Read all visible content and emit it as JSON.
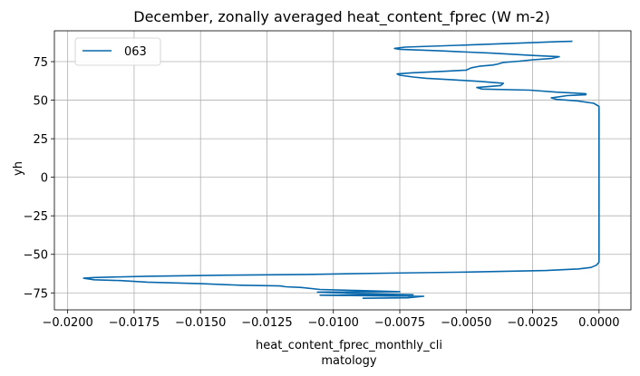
{
  "chart_data": {
    "type": "line",
    "title": "December, zonally averaged heat_content_fprec (W m-2)",
    "xlabel": [
      "heat_content_fprec_monthly_cli",
      "matology"
    ],
    "ylabel": "yh",
    "xlim": [
      -0.0205,
      0.0012
    ],
    "ylim": [
      -86,
      95
    ],
    "xticks": [
      -0.02,
      -0.0175,
      -0.015,
      -0.0125,
      -0.01,
      -0.0075,
      -0.005,
      -0.0025,
      0.0
    ],
    "xtick_labels": [
      "−0.0200",
      "−0.0175",
      "−0.0150",
      "−0.0125",
      "−0.0100",
      "−0.0075",
      "−0.0050",
      "−0.0025",
      "0.0000"
    ],
    "yticks": [
      -75,
      -50,
      -25,
      0,
      25,
      50,
      75
    ],
    "ytick_labels": [
      "−75",
      "−50",
      "−25",
      "0",
      "25",
      "50",
      "75"
    ],
    "grid": true,
    "legend_position": "upper-left",
    "series": [
      {
        "name": "063",
        "color": "#0868ac",
        "points": [
          [
            -0.0089,
            -78.5
          ],
          [
            -0.0072,
            -78.2
          ],
          [
            -0.0066,
            -77.2
          ],
          [
            -0.0079,
            -77.0
          ],
          [
            -0.0105,
            -76.5
          ],
          [
            -0.007,
            -76.2
          ],
          [
            -0.009,
            -75.5
          ],
          [
            -0.0106,
            -74.5
          ],
          [
            -0.0075,
            -74.2
          ],
          [
            -0.009,
            -73.5
          ],
          [
            -0.0105,
            -72.8
          ],
          [
            -0.0112,
            -71.5
          ],
          [
            -0.0118,
            -71.0
          ],
          [
            -0.012,
            -70.5
          ],
          [
            -0.0135,
            -70.0
          ],
          [
            -0.015,
            -69.0
          ],
          [
            -0.017,
            -68.0
          ],
          [
            -0.018,
            -67.0
          ],
          [
            -0.019,
            -66.5
          ],
          [
            -0.0194,
            -65.5
          ],
          [
            -0.019,
            -65.0
          ],
          [
            -0.017,
            -64.2
          ],
          [
            -0.014,
            -63.5
          ],
          [
            -0.011,
            -63.0
          ],
          [
            -0.008,
            -62.2
          ],
          [
            -0.005,
            -61.5
          ],
          [
            -0.002,
            -60.5
          ],
          [
            -0.0008,
            -59.5
          ],
          [
            -0.0003,
            -58.5
          ],
          [
            -0.0001,
            -57.0
          ],
          [
            0.0,
            -55.0
          ],
          [
            0.0,
            -30.0
          ],
          [
            0.0,
            0.0
          ],
          [
            0.0,
            25.0
          ],
          [
            0.0,
            46.0
          ],
          [
            -0.0002,
            48.0
          ],
          [
            -0.0008,
            49.5
          ],
          [
            -0.0016,
            50.5
          ],
          [
            -0.0018,
            51.5
          ],
          [
            -0.0015,
            52.2
          ],
          [
            -0.0012,
            53.0
          ],
          [
            -0.0005,
            53.5
          ],
          [
            -0.0005,
            54.2
          ],
          [
            -0.0016,
            55.2
          ],
          [
            -0.0026,
            56.5
          ],
          [
            -0.0044,
            57.2
          ],
          [
            -0.0046,
            58.2
          ],
          [
            -0.0037,
            59.5
          ],
          [
            -0.0036,
            61.0
          ],
          [
            -0.0045,
            62.2
          ],
          [
            -0.0055,
            63.2
          ],
          [
            -0.0065,
            64.2
          ],
          [
            -0.007,
            65.0
          ],
          [
            -0.0075,
            66.2
          ],
          [
            -0.0076,
            67.0
          ],
          [
            -0.007,
            67.8
          ],
          [
            -0.006,
            68.6
          ],
          [
            -0.005,
            69.5
          ],
          [
            -0.0048,
            71.0
          ],
          [
            -0.0045,
            72.0
          ],
          [
            -0.004,
            72.8
          ],
          [
            -0.0038,
            73.5
          ],
          [
            -0.0036,
            74.5
          ],
          [
            -0.003,
            75.3
          ],
          [
            -0.0025,
            76.2
          ],
          [
            -0.0018,
            77.0
          ],
          [
            -0.0015,
            78.2
          ],
          [
            -0.0025,
            79.0
          ],
          [
            -0.004,
            80.5
          ],
          [
            -0.006,
            82.0
          ],
          [
            -0.0075,
            83.0
          ],
          [
            -0.0077,
            83.6
          ],
          [
            -0.0073,
            84.4
          ],
          [
            -0.005,
            85.8
          ],
          [
            -0.003,
            87.0
          ],
          [
            -0.0015,
            88.0
          ],
          [
            -0.001,
            88.2
          ]
        ]
      }
    ]
  }
}
